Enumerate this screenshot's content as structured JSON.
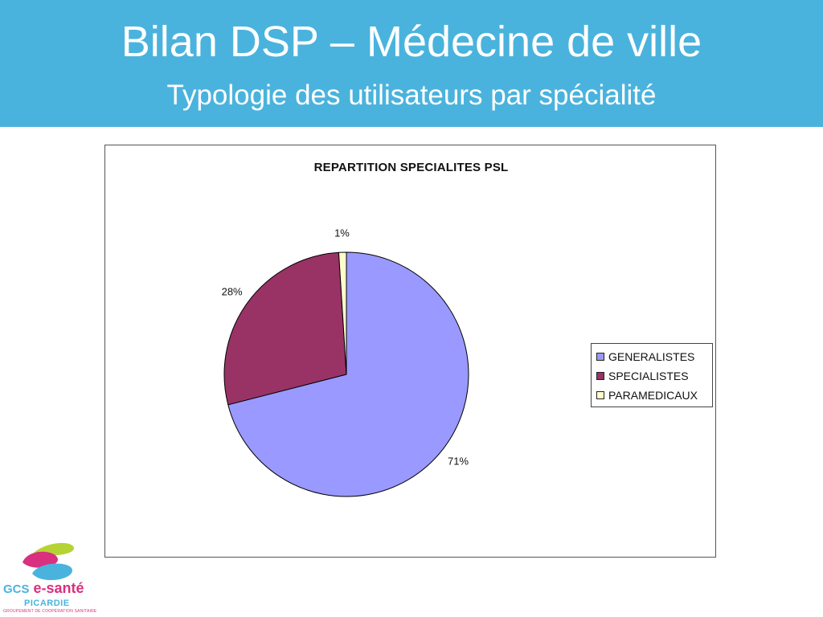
{
  "header": {
    "title": "Bilan DSP – Médecine de ville",
    "subtitle": "Typologie des utilisateurs par spécialité",
    "background": "#4ab3dd"
  },
  "chart_data": {
    "type": "pie",
    "title": "REPARTITION SPECIALITES PSL",
    "legend_position": "right",
    "slices": [
      {
        "label": "GENERALISTES",
        "value": 71,
        "display": "71%",
        "color": "#9999ff"
      },
      {
        "label": "SPECIALISTES",
        "value": 28,
        "display": "28%",
        "color": "#993366"
      },
      {
        "label": "PARAMEDICAUX",
        "value": 1,
        "display": "1%",
        "color": "#ffffcc"
      }
    ]
  },
  "logo": {
    "prefix": "GCS",
    "name": "e-santé",
    "region": "PICARDIE",
    "tagline": "GROUPEMENT DE COOPÉRATION SANITAIRE",
    "colors": {
      "pink": "#d9307f",
      "blue": "#4ab3dd",
      "green": "#b5d334"
    }
  }
}
